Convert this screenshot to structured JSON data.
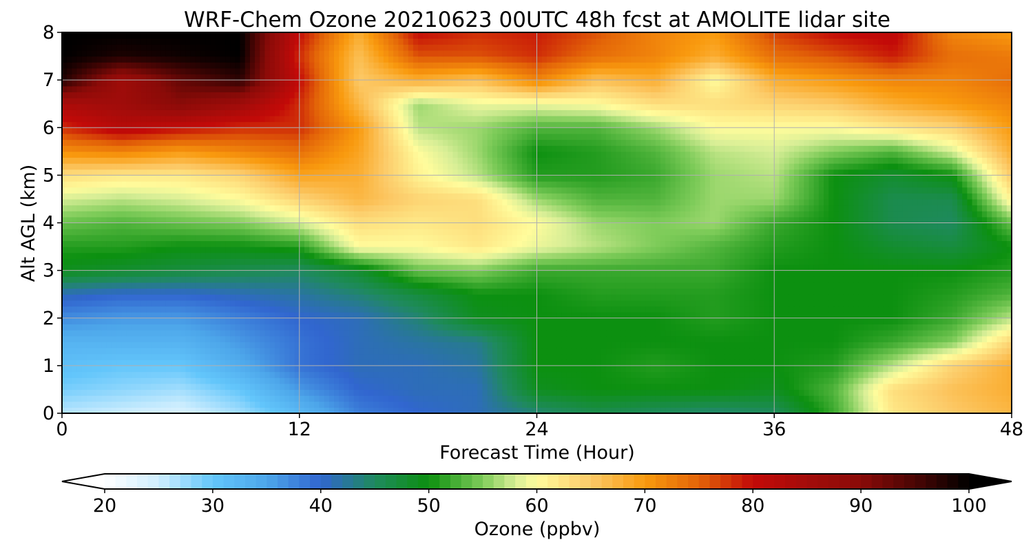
{
  "chart_data": {
    "type": "heatmap",
    "title": "WRF-Chem Ozone  20210623 00UTC 48h fcst at AMOLITE lidar site",
    "xlabel": "Forecast Time (Hour)",
    "ylabel": "Alt AGL (km)",
    "xlim": [
      0,
      48
    ],
    "ylim": [
      0,
      8
    ],
    "x_ticks": [
      "0",
      "12",
      "24",
      "36",
      "48"
    ],
    "y_ticks": [
      "0",
      "1",
      "2",
      "3",
      "4",
      "5",
      "6",
      "7",
      "8"
    ],
    "grid": true,
    "x": [
      0,
      3,
      6,
      9,
      12,
      15,
      18,
      21,
      24,
      27,
      30,
      33,
      36,
      39,
      42,
      45,
      48
    ],
    "y": [
      0,
      0.5,
      1,
      1.5,
      2,
      2.5,
      3,
      3.5,
      4,
      4.5,
      5,
      5.5,
      6,
      6.5,
      7,
      7.5,
      8
    ],
    "z": [
      [
        26,
        25,
        24,
        27,
        32,
        38,
        40,
        41,
        44,
        46,
        45,
        44,
        45,
        52,
        62,
        65,
        67
      ],
      [
        29,
        28,
        27,
        30,
        36,
        40,
        41,
        41,
        49,
        50,
        50,
        50,
        49,
        53,
        63,
        66,
        68
      ],
      [
        31,
        30,
        30,
        34,
        39,
        41,
        41,
        42,
        50,
        50,
        51,
        50,
        50,
        51,
        57,
        64,
        68
      ],
      [
        33,
        33,
        33,
        36,
        39,
        41,
        42,
        43,
        50,
        50,
        50,
        50,
        50,
        50,
        52,
        55,
        64
      ],
      [
        37,
        36,
        36,
        38,
        40,
        41,
        44,
        49,
        50,
        50,
        50,
        51,
        50,
        50,
        50,
        52,
        57
      ],
      [
        41,
        40,
        40,
        41,
        42,
        44,
        47,
        50,
        50,
        51,
        51,
        51,
        50,
        50,
        50,
        51,
        53
      ],
      [
        49,
        48,
        47,
        46,
        45,
        48,
        54,
        55,
        52,
        52,
        52,
        52,
        50,
        50,
        50,
        50,
        51
      ],
      [
        51,
        51,
        50,
        50,
        51,
        60,
        60,
        62,
        59,
        57,
        55,
        53,
        51,
        50,
        48,
        47,
        50
      ],
      [
        54,
        53,
        54,
        55,
        58,
        63,
        62,
        63,
        60,
        56,
        55,
        56,
        52,
        50,
        46,
        45,
        54
      ],
      [
        58,
        57,
        58,
        60,
        64,
        67,
        64,
        63,
        56,
        53,
        53,
        56,
        56,
        50,
        46,
        46,
        61
      ],
      [
        63,
        62,
        62,
        64,
        69,
        68,
        61,
        57,
        51,
        51,
        52,
        56,
        57,
        50,
        48,
        50,
        65
      ],
      [
        71,
        72,
        70,
        72,
        74,
        69,
        60,
        56,
        50,
        51,
        53,
        57,
        58,
        55,
        53,
        58,
        68
      ],
      [
        78,
        82,
        80,
        78,
        78,
        70,
        57,
        56,
        53,
        53,
        56,
        60,
        60,
        60,
        62,
        64,
        70
      ],
      [
        84,
        86,
        90,
        86,
        78,
        67,
        56,
        59,
        59,
        60,
        63,
        63,
        64,
        65,
        68,
        70,
        72
      ],
      [
        98,
        86,
        93,
        97,
        80,
        65,
        68,
        66,
        72,
        66,
        68,
        60,
        68,
        70,
        72,
        72,
        74
      ],
      [
        100,
        98,
        99,
        100,
        78,
        66,
        76,
        76,
        78,
        74,
        72,
        68,
        74,
        76,
        79,
        74,
        73
      ],
      [
        100,
        100,
        100,
        100,
        80,
        68,
        80,
        78,
        79,
        76,
        72,
        70,
        77,
        80,
        81,
        72,
        70
      ]
    ],
    "colorbar": {
      "label": "Ozone  (ppbv)",
      "min": 20,
      "max": 100,
      "ticks": [
        "20",
        "30",
        "40",
        "50",
        "60",
        "70",
        "80",
        "90",
        "100"
      ],
      "extend": "both"
    },
    "colormap": [
      {
        "v": 20,
        "c": "#ffffff"
      },
      {
        "v": 25,
        "c": "#cfeefe"
      },
      {
        "v": 30,
        "c": "#63c6fb"
      },
      {
        "v": 35,
        "c": "#4da6ea"
      },
      {
        "v": 40,
        "c": "#3166cf"
      },
      {
        "v": 45,
        "c": "#1f8a5e"
      },
      {
        "v": 50,
        "c": "#0c9010"
      },
      {
        "v": 55,
        "c": "#7fcc5a"
      },
      {
        "v": 58,
        "c": "#d7ee96"
      },
      {
        "v": 60,
        "c": "#fffc9c"
      },
      {
        "v": 65,
        "c": "#fcca68"
      },
      {
        "v": 70,
        "c": "#f99a0e"
      },
      {
        "v": 75,
        "c": "#e36408"
      },
      {
        "v": 80,
        "c": "#c30a08"
      },
      {
        "v": 85,
        "c": "#a40c0a"
      },
      {
        "v": 90,
        "c": "#8a0b08"
      },
      {
        "v": 95,
        "c": "#4a0504"
      },
      {
        "v": 100,
        "c": "#000000"
      }
    ]
  }
}
